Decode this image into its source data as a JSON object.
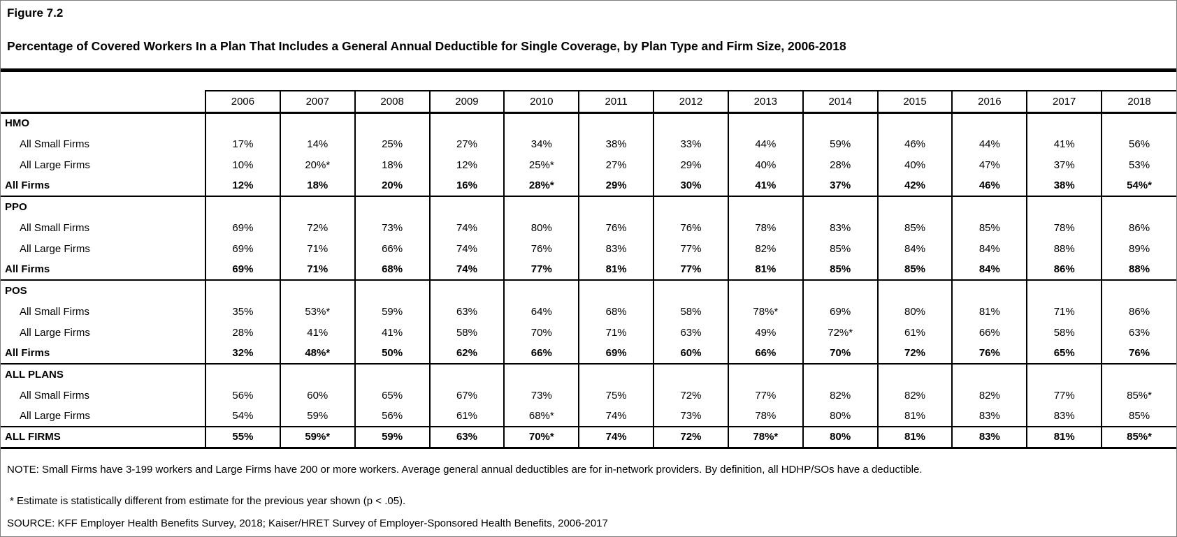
{
  "figure": {
    "label": "Figure 7.2",
    "title": "Percentage of Covered Workers In a Plan That Includes a General Annual Deductible for Single Coverage, by Plan Type and Firm Size, 2006-2018"
  },
  "chart_data": {
    "type": "table",
    "title": "Percentage of Covered Workers In a Plan That Includes a General Annual Deductible for Single Coverage, by Plan Type and Firm Size, 2006-2018",
    "years": [
      "2006",
      "2007",
      "2008",
      "2009",
      "2010",
      "2011",
      "2012",
      "2013",
      "2014",
      "2015",
      "2016",
      "2017",
      "2018"
    ],
    "sections": [
      {
        "name": "HMO",
        "rows": [
          {
            "label": "All Small Firms",
            "bold": false,
            "values": [
              "17%",
              "14%",
              "25%",
              "27%",
              "34%",
              "38%",
              "33%",
              "44%",
              "59%",
              "46%",
              "44%",
              "41%",
              "56%"
            ]
          },
          {
            "label": "All Large Firms",
            "bold": false,
            "values": [
              "10%",
              "20%*",
              "18%",
              "12%",
              "25%*",
              "27%",
              "29%",
              "40%",
              "28%",
              "40%",
              "47%",
              "37%",
              "53%"
            ]
          },
          {
            "label": "All Firms",
            "bold": true,
            "values": [
              "12%",
              "18%",
              "20%",
              "16%",
              "28%*",
              "29%",
              "30%",
              "41%",
              "37%",
              "42%",
              "46%",
              "38%",
              "54%*"
            ]
          }
        ]
      },
      {
        "name": "PPO",
        "rows": [
          {
            "label": "All Small Firms",
            "bold": false,
            "values": [
              "69%",
              "72%",
              "73%",
              "74%",
              "80%",
              "76%",
              "76%",
              "78%",
              "83%",
              "85%",
              "85%",
              "78%",
              "86%"
            ]
          },
          {
            "label": "All Large Firms",
            "bold": false,
            "values": [
              "69%",
              "71%",
              "66%",
              "74%",
              "76%",
              "83%",
              "77%",
              "82%",
              "85%",
              "84%",
              "84%",
              "88%",
              "89%"
            ]
          },
          {
            "label": "All Firms",
            "bold": true,
            "values": [
              "69%",
              "71%",
              "68%",
              "74%",
              "77%",
              "81%",
              "77%",
              "81%",
              "85%",
              "85%",
              "84%",
              "86%",
              "88%"
            ]
          }
        ]
      },
      {
        "name": "POS",
        "rows": [
          {
            "label": "All Small Firms",
            "bold": false,
            "values": [
              "35%",
              "53%*",
              "59%",
              "63%",
              "64%",
              "68%",
              "58%",
              "78%*",
              "69%",
              "80%",
              "81%",
              "71%",
              "86%"
            ]
          },
          {
            "label": "All Large Firms",
            "bold": false,
            "values": [
              "28%",
              "41%",
              "41%",
              "58%",
              "70%",
              "71%",
              "63%",
              "49%",
              "72%*",
              "61%",
              "66%",
              "58%",
              "63%"
            ]
          },
          {
            "label": "All Firms",
            "bold": true,
            "values": [
              "32%",
              "48%*",
              "50%",
              "62%",
              "66%",
              "69%",
              "60%",
              "66%",
              "70%",
              "72%",
              "76%",
              "65%",
              "76%"
            ]
          }
        ]
      },
      {
        "name": "ALL PLANS",
        "rows": [
          {
            "label": "All Small Firms",
            "bold": false,
            "values": [
              "56%",
              "60%",
              "65%",
              "67%",
              "73%",
              "75%",
              "72%",
              "77%",
              "82%",
              "82%",
              "82%",
              "77%",
              "85%*"
            ]
          },
          {
            "label": "All Large Firms",
            "bold": false,
            "values": [
              "54%",
              "59%",
              "56%",
              "61%",
              "68%*",
              "74%",
              "73%",
              "78%",
              "80%",
              "81%",
              "83%",
              "83%",
              "85%"
            ]
          }
        ]
      }
    ],
    "total_row": {
      "label": "ALL FIRMS",
      "values": [
        "55%",
        "59%*",
        "59%",
        "63%",
        "70%*",
        "74%",
        "72%",
        "78%*",
        "80%",
        "81%",
        "83%",
        "81%",
        "85%*"
      ]
    }
  },
  "notes": {
    "note": "NOTE: Small Firms have 3-199 workers and Large Firms have 200 or more workers. Average general annual deductibles are for in-network providers. By definition, all HDHP/SOs have a deductible.",
    "asterisk": "* Estimate is statistically different from estimate for the previous year shown (p < .05).",
    "source": "SOURCE: KFF Employer Health Benefits Survey, 2018; Kaiser/HRET Survey of Employer-Sponsored Health Benefits, 2006-2017"
  }
}
